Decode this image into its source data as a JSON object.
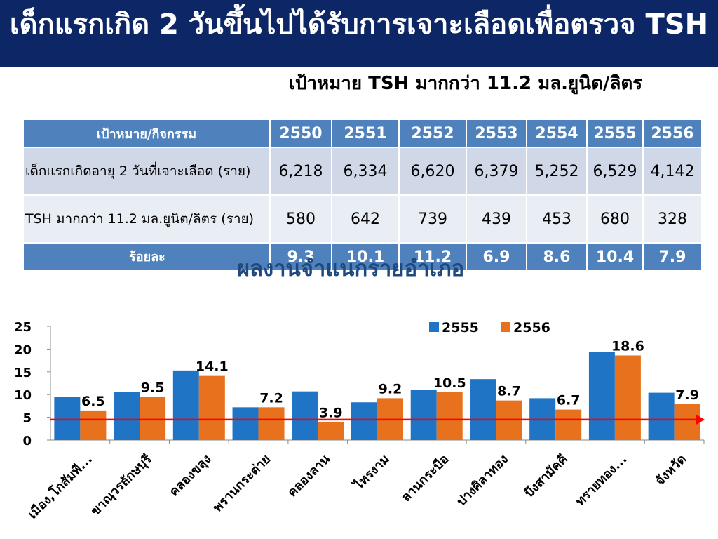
{
  "slide": {
    "title": "เด็กแรกเกิด 2 วันขึ้นไปได้รับการเจาะเลือดเพื่อตรวจ TSH",
    "target": "เป้าหมาย TSH มากกว่า 11.2 มล.ยูนิต/ลิตร"
  },
  "table": {
    "header_label": "เป้าหมาย/กิจกรรม",
    "years": [
      "2550",
      "2551",
      "2552",
      "2553",
      "2554",
      "2555",
      "2556"
    ],
    "rows": [
      {
        "label": "  เด็กแรกเกิดอายุ 2 วันที่เจาะเลือด  (ราย)",
        "values": [
          "6,218",
          "6,334",
          "6,620",
          "6,379",
          "5,252",
          "6,529",
          "4,142"
        ]
      },
      {
        "label": "  TSH มากกว่า 11.2 มล.ยูนิต/ลิตร  (ราย)",
        "values": [
          "580",
          "642",
          "739",
          "439",
          "453",
          "680",
          "328"
        ]
      }
    ],
    "percent_row": {
      "label": "ร้อยละ",
      "values": [
        "9.3",
        "10.1",
        "11.2",
        "6.9",
        "8.6",
        "10.4",
        "7.9"
      ]
    }
  },
  "chart_data": {
    "type": "bar",
    "title": "ผลงานจำแนกรายอำเภอ",
    "categories": [
      "เมือง,โกสัมพี...",
      "ขาณุวรลักษบุรี",
      "คลองขลุง",
      "พรานกระต่าย",
      "คลองลาน",
      "ไทรงาม",
      "ลานกระบือ",
      "ปางศิลาทอง",
      "บึงสามัคคี",
      "ทรายทอง...",
      "จังหวัด"
    ],
    "series": [
      {
        "name": "2555",
        "color": "#1f74c6",
        "values": [
          9.5,
          10.5,
          15.3,
          7.2,
          10.7,
          8.3,
          11.0,
          13.4,
          9.2,
          19.4,
          10.4
        ]
      },
      {
        "name": "2556",
        "color": "#e8711d",
        "values": [
          6.5,
          9.5,
          14.1,
          7.2,
          3.9,
          9.2,
          10.5,
          8.7,
          6.7,
          18.6,
          7.9
        ]
      }
    ],
    "data_labels_series": "2556",
    "ylim": [
      0,
      25
    ],
    "yticks": [
      0,
      5,
      10,
      15,
      20,
      25
    ],
    "target_line": {
      "value": 4.5,
      "color": "#ff0000"
    },
    "legend_position": "top-right",
    "grid": false
  }
}
